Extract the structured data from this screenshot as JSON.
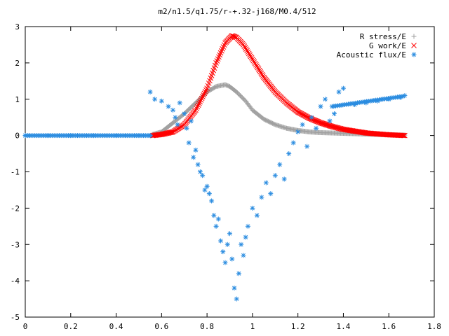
{
  "chart_data": {
    "type": "scatter",
    "title": "m2/n1.5/q1.75/r-+.32-j168/M0.4/512",
    "xlim": [
      0,
      1.8
    ],
    "ylim": [
      -5,
      3
    ],
    "x_ticks": [
      0,
      0.2,
      0.4,
      0.6,
      0.8,
      1,
      1.2,
      1.4,
      1.6,
      1.8
    ],
    "x_tick_labels": [
      "0",
      "0.2",
      "0.4",
      "0.6",
      "0.8",
      "1",
      "1.2",
      "1.4",
      "1.6",
      "1.8"
    ],
    "y_ticks": [
      3,
      2,
      1,
      0,
      -1,
      -2,
      -3,
      -4,
      -5
    ],
    "y_tick_labels": [
      "3",
      "2",
      "1",
      "0",
      "-1",
      "-2",
      "-3",
      "-4",
      "-5"
    ],
    "legend_position": "top-right",
    "series": [
      {
        "name": "R stress/E",
        "marker": "plus",
        "color": "#a0a0a0",
        "x": [
          0.56,
          0.6,
          0.65,
          0.7,
          0.75,
          0.8,
          0.84,
          0.88,
          0.9,
          0.93,
          0.97,
          1.0,
          1.05,
          1.1,
          1.15,
          1.2,
          1.25,
          1.3,
          1.4,
          1.5,
          1.6,
          1.67
        ],
        "y": [
          0.03,
          0.1,
          0.35,
          0.6,
          0.9,
          1.2,
          1.35,
          1.4,
          1.35,
          1.2,
          0.95,
          0.7,
          0.45,
          0.3,
          0.2,
          0.14,
          0.1,
          0.08,
          0.06,
          0.04,
          0.02,
          0.01
        ]
      },
      {
        "name": "G work/E",
        "marker": "cross",
        "color": "#ff0000",
        "x": [
          0.56,
          0.6,
          0.65,
          0.7,
          0.75,
          0.8,
          0.84,
          0.88,
          0.91,
          0.93,
          0.96,
          1.0,
          1.05,
          1.1,
          1.15,
          1.2,
          1.25,
          1.3,
          1.35,
          1.4,
          1.5,
          1.6,
          1.67
        ],
        "y": [
          0.0,
          0.03,
          0.1,
          0.3,
          0.7,
          1.3,
          2.0,
          2.55,
          2.75,
          2.7,
          2.5,
          2.1,
          1.6,
          1.2,
          0.9,
          0.65,
          0.48,
          0.35,
          0.25,
          0.17,
          0.07,
          0.02,
          0.0
        ]
      },
      {
        "name": "Acoustic flux/E",
        "marker": "star",
        "color": "#2a8ce0",
        "x": [
          0.0,
          0.1,
          0.2,
          0.3,
          0.4,
          0.5,
          0.55,
          0.55,
          0.57,
          0.6,
          0.63,
          0.65,
          0.66,
          0.67,
          0.68,
          0.7,
          0.71,
          0.72,
          0.73,
          0.74,
          0.75,
          0.76,
          0.77,
          0.78,
          0.79,
          0.8,
          0.81,
          0.82,
          0.83,
          0.84,
          0.85,
          0.86,
          0.87,
          0.88,
          0.89,
          0.9,
          0.91,
          0.92,
          0.93,
          0.94,
          0.95,
          0.96,
          0.97,
          0.98,
          1.0,
          1.02,
          1.04,
          1.06,
          1.08,
          1.1,
          1.12,
          1.14,
          1.16,
          1.18,
          1.2,
          1.22,
          1.24,
          1.26,
          1.28,
          1.3,
          1.32,
          1.34,
          1.36,
          1.38,
          1.4,
          1.45,
          1.5,
          1.55,
          1.6,
          1.65,
          1.67
        ],
        "y": [
          0.0,
          0.0,
          0.0,
          0.0,
          0.0,
          0.0,
          0.0,
          1.2,
          1.0,
          0.95,
          0.8,
          0.7,
          0.5,
          0.3,
          0.9,
          0.6,
          0.2,
          -0.2,
          0.4,
          -0.6,
          -0.4,
          -0.8,
          -1.0,
          -1.1,
          -1.5,
          -1.4,
          -1.6,
          -1.8,
          -2.2,
          -2.5,
          -2.3,
          -2.9,
          -3.2,
          -3.5,
          -3.0,
          -2.7,
          -3.4,
          -4.2,
          -4.5,
          -3.8,
          -3.0,
          -3.3,
          -2.8,
          -2.5,
          -2.0,
          -2.2,
          -1.7,
          -1.3,
          -1.6,
          -1.1,
          -0.8,
          -1.2,
          -0.5,
          -0.2,
          0.1,
          0.3,
          -0.3,
          0.5,
          0.2,
          0.8,
          1.0,
          0.4,
          0.6,
          1.2,
          1.3,
          0.85,
          0.9,
          0.95,
          1.0,
          1.05,
          1.1
        ]
      }
    ]
  }
}
